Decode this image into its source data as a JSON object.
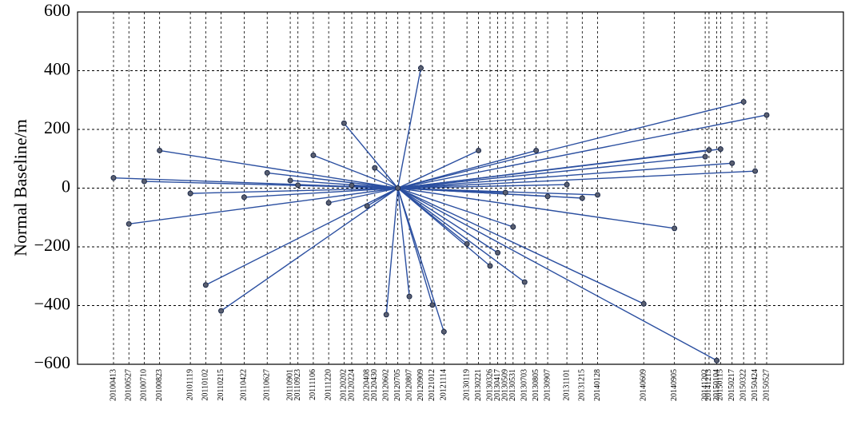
{
  "chart_data": {
    "type": "baseline-network",
    "y_label": "Normal Baseline/m",
    "x": [
      "20100413",
      "20100527",
      "20100710",
      "20100823",
      "20101119",
      "20110102",
      "20110215",
      "20110422",
      "20110627",
      "20110901",
      "20110923",
      "20111106",
      "20111220",
      "20120202",
      "20120224",
      "20120408",
      "20120430",
      "20120602",
      "20120705",
      "20120807",
      "20120909",
      "20121012",
      "20121114",
      "20130119",
      "20130221",
      "20130326",
      "20130417",
      "20130509",
      "20130531",
      "20130703",
      "20130805",
      "20130907",
      "20131101",
      "20131215",
      "20140128",
      "20140609",
      "20140905",
      "20141202",
      "20141213",
      "20150104",
      "20150115",
      "20150217",
      "20150322",
      "20150424",
      "20150527"
    ],
    "values": [
      35,
      -122,
      23,
      128,
      -18,
      -330,
      -418,
      -31,
      52,
      26,
      10,
      112,
      -50,
      221,
      9,
      -61,
      69,
      -431,
      0,
      -369,
      409,
      -398,
      -489,
      -190,
      128,
      -265,
      -220,
      -15,
      -132,
      -320,
      128,
      -28,
      12,
      -34,
      -23,
      -394,
      -137,
      107,
      130,
      -587,
      133,
      85,
      294,
      58,
      249
    ],
    "master": "20120705",
    "line_color": "#2b4fa0",
    "point_color": "#1c2a4a",
    "ylim": [
      -600,
      600
    ],
    "yticks": [
      {
        "value": -600,
        "label": "−600"
      },
      {
        "value": -400,
        "label": "−400"
      },
      {
        "value": -200,
        "label": "−200"
      },
      0,
      200,
      400,
      600
    ],
    "grid": true
  }
}
